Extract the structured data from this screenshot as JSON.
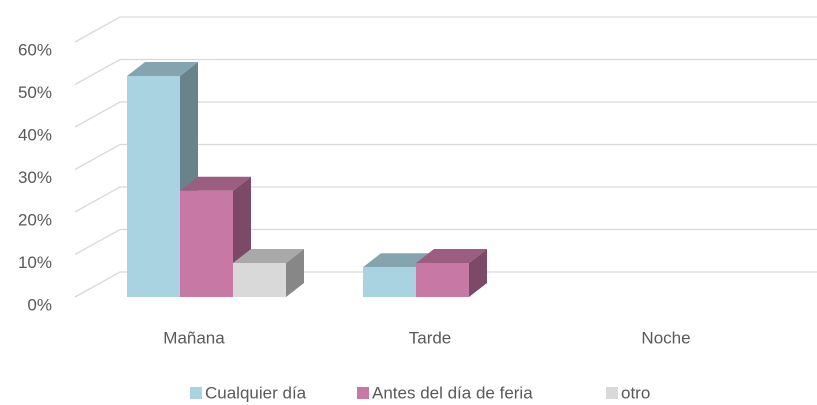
{
  "chart_data": {
    "type": "bar3d",
    "categories": [
      "Mañana",
      "Tarde",
      "Noche"
    ],
    "series": [
      {
        "name": "Cualquier día",
        "color": "#a9d3e0",
        "values": [
          52,
          7,
          null
        ]
      },
      {
        "name": "Antes del día de feria",
        "color": "#c878a4",
        "values": [
          25,
          8,
          null
        ]
      },
      {
        "name": "otro",
        "color": "#d9d9d9",
        "values": [
          8,
          null,
          null
        ]
      }
    ],
    "ylim": [
      0,
      70
    ],
    "yticks": [
      {
        "value": 0,
        "label": "0%"
      },
      {
        "value": 10,
        "label": "10%"
      },
      {
        "value": 20,
        "label": "20%"
      },
      {
        "value": 30,
        "label": "30%"
      },
      {
        "value": 40,
        "label": "40%"
      },
      {
        "value": 50,
        "label": "50%"
      },
      {
        "value": 60,
        "label": "60%"
      }
    ],
    "grid": true,
    "legend": "bottom"
  }
}
